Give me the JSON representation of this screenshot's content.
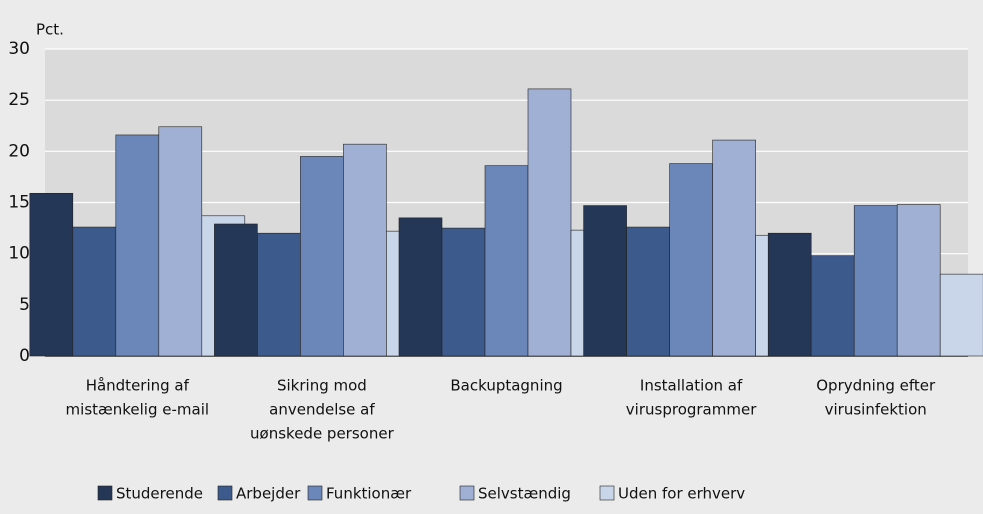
{
  "chart_data": {
    "type": "bar",
    "y_label": "Pct.",
    "categories": [
      [
        "Håndtering af",
        "mistænkelig e-mail"
      ],
      [
        "Sikring mod",
        "anvendelse af",
        "uønskede personer"
      ],
      [
        "Backuptagning"
      ],
      [
        "Installation af",
        "virusprogrammer"
      ],
      [
        "Oprydning efter",
        "virusinfektion"
      ]
    ],
    "series": [
      {
        "name": "Studerende",
        "color": "#253756",
        "values": [
          15.9,
          12.9,
          13.5,
          14.7,
          12.0
        ]
      },
      {
        "name": "Arbejder",
        "color": "#3d5a8c",
        "values": [
          12.6,
          12.0,
          12.5,
          12.6,
          9.8
        ]
      },
      {
        "name": "Funktionær",
        "color": "#6b86b8",
        "values": [
          21.6,
          19.5,
          18.6,
          18.8,
          14.7
        ]
      },
      {
        "name": "Selvstændig",
        "color": "#9fb0d4",
        "values": [
          22.4,
          20.7,
          26.1,
          21.1,
          14.8
        ]
      },
      {
        "name": "Uden for erhverv",
        "color": "#c9d6ea",
        "values": [
          13.7,
          12.2,
          12.3,
          11.8,
          8.0
        ]
      }
    ],
    "ylim": [
      0,
      30
    ],
    "yticks": [
      0,
      5,
      10,
      15,
      20,
      25,
      30
    ],
    "grid": true
  }
}
